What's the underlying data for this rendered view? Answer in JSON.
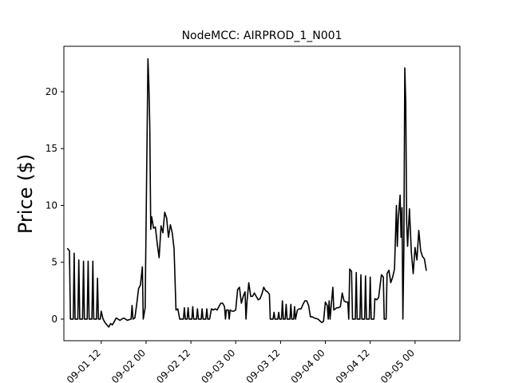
{
  "chart_data": {
    "type": "line",
    "title": "NodeMCC: AIRPROD_1_N001",
    "xlabel": "",
    "ylabel": "Price ($)",
    "x_axis": "datetime",
    "xlim": [
      "2018-09-01 02:00",
      "2018-09-05 12:00"
    ],
    "ylim": [
      -1.9,
      24.0
    ],
    "yticks": [
      0,
      5,
      10,
      15,
      20
    ],
    "xticks": [
      {
        "value": "2018-09-01 12:00",
        "label": "09-01 12"
      },
      {
        "value": "2018-09-02 00:00",
        "label": "09-02 00"
      },
      {
        "value": "2018-09-02 12:00",
        "label": "09-02 12"
      },
      {
        "value": "2018-09-03 00:00",
        "label": "09-03 00"
      },
      {
        "value": "2018-09-03 12:00",
        "label": "09-03 12"
      },
      {
        "value": "2018-09-04 00:00",
        "label": "09-04 00"
      },
      {
        "value": "2018-09-04 12:00",
        "label": "09-04 12"
      },
      {
        "value": "2018-09-05 00:00",
        "label": "09-05 00"
      }
    ],
    "grid": false,
    "line_color": "#000000",
    "series": [
      {
        "name": "",
        "points": [
          [
            "2018-09-01 03:00",
            6.2
          ],
          [
            "2018-09-01 03:30",
            6.0
          ],
          [
            "2018-09-01 03:45",
            0.0
          ],
          [
            "2018-09-01 04:30",
            0.0
          ],
          [
            "2018-09-01 04:45",
            5.8
          ],
          [
            "2018-09-01 05:00",
            0.0
          ],
          [
            "2018-09-01 05:45",
            0.0
          ],
          [
            "2018-09-01 06:00",
            5.2
          ],
          [
            "2018-09-01 06:15",
            0.0
          ],
          [
            "2018-09-01 07:00",
            0.0
          ],
          [
            "2018-09-01 07:15",
            5.1
          ],
          [
            "2018-09-01 07:30",
            0.0
          ],
          [
            "2018-09-01 08:15",
            0.0
          ],
          [
            "2018-09-01 08:30",
            5.1
          ],
          [
            "2018-09-01 08:45",
            0.0
          ],
          [
            "2018-09-01 09:30",
            0.0
          ],
          [
            "2018-09-01 09:45",
            5.1
          ],
          [
            "2018-09-01 10:00",
            0.0
          ],
          [
            "2018-09-01 10:45",
            0.0
          ],
          [
            "2018-09-01 11:00",
            3.6
          ],
          [
            "2018-09-01 11:15",
            0.0
          ],
          [
            "2018-09-01 11:45",
            0.0
          ],
          [
            "2018-09-01 12:00",
            0.7
          ],
          [
            "2018-09-01 12:30",
            0.0
          ],
          [
            "2018-09-01 13:00",
            -0.3
          ],
          [
            "2018-09-01 14:00",
            -0.7
          ],
          [
            "2018-09-01 14:30",
            -0.4
          ],
          [
            "2018-09-01 15:00",
            -0.5
          ],
          [
            "2018-09-01 15:30",
            -0.2
          ],
          [
            "2018-09-01 16:00",
            0.1
          ],
          [
            "2018-09-01 17:00",
            -0.1
          ],
          [
            "2018-09-01 18:00",
            0.1
          ],
          [
            "2018-09-01 19:00",
            -0.1
          ],
          [
            "2018-09-01 20:00",
            0.0
          ],
          [
            "2018-09-01 20:15",
            1.2
          ],
          [
            "2018-09-01 20:30",
            0.0
          ],
          [
            "2018-09-01 21:00",
            0.1
          ],
          [
            "2018-09-01 21:30",
            1.3
          ],
          [
            "2018-09-01 22:00",
            2.7
          ],
          [
            "2018-09-01 22:30",
            3.0
          ],
          [
            "2018-09-01 23:00",
            4.6
          ],
          [
            "2018-09-01 23:15",
            0.0
          ],
          [
            "2018-09-01 23:45",
            1.0
          ],
          [
            "2018-09-02 00:30",
            22.9
          ],
          [
            "2018-09-02 00:45",
            20.5
          ],
          [
            "2018-09-02 01:00",
            17.0
          ],
          [
            "2018-09-02 01:15",
            7.9
          ],
          [
            "2018-09-02 01:30",
            9.0
          ],
          [
            "2018-09-02 02:00",
            8.0
          ],
          [
            "2018-09-02 02:30",
            8.1
          ],
          [
            "2018-09-02 03:00",
            6.6
          ],
          [
            "2018-09-02 03:30",
            5.4
          ],
          [
            "2018-09-02 04:00",
            8.2
          ],
          [
            "2018-09-02 04:30",
            7.6
          ],
          [
            "2018-09-02 05:00",
            9.4
          ],
          [
            "2018-09-02 05:30",
            8.9
          ],
          [
            "2018-09-02 06:00",
            7.2
          ],
          [
            "2018-09-02 06:30",
            8.3
          ],
          [
            "2018-09-02 07:00",
            7.6
          ],
          [
            "2018-09-02 07:30",
            6.2
          ],
          [
            "2018-09-02 08:00",
            0.8
          ],
          [
            "2018-09-02 08:30",
            0.9
          ],
          [
            "2018-09-02 09:00",
            0.0
          ],
          [
            "2018-09-02 10:00",
            0.0
          ],
          [
            "2018-09-02 10:15",
            1.0
          ],
          [
            "2018-09-02 10:30",
            0.0
          ],
          [
            "2018-09-02 11:00",
            0.0
          ],
          [
            "2018-09-02 11:15",
            1.0
          ],
          [
            "2018-09-02 11:30",
            0.0
          ],
          [
            "2018-09-02 12:15",
            0.0
          ],
          [
            "2018-09-02 12:30",
            1.1
          ],
          [
            "2018-09-02 12:45",
            0.0
          ],
          [
            "2018-09-02 13:30",
            0.0
          ],
          [
            "2018-09-02 13:45",
            0.9
          ],
          [
            "2018-09-02 14:00",
            0.0
          ],
          [
            "2018-09-02 14:45",
            0.0
          ],
          [
            "2018-09-02 15:00",
            0.9
          ],
          [
            "2018-09-02 15:15",
            0.0
          ],
          [
            "2018-09-02 16:00",
            0.0
          ],
          [
            "2018-09-02 16:15",
            0.9
          ],
          [
            "2018-09-02 16:30",
            0.0
          ],
          [
            "2018-09-02 17:00",
            0.0
          ],
          [
            "2018-09-02 17:30",
            0.9
          ],
          [
            "2018-09-02 18:00",
            0.8
          ],
          [
            "2018-09-02 18:30",
            0.9
          ],
          [
            "2018-09-02 19:00",
            0.8
          ],
          [
            "2018-09-02 19:30",
            1.1
          ],
          [
            "2018-09-02 20:00",
            1.4
          ],
          [
            "2018-09-02 20:30",
            1.4
          ],
          [
            "2018-09-02 21:00",
            1.1
          ],
          [
            "2018-09-02 21:15",
            0.0
          ],
          [
            "2018-09-02 21:30",
            0.8
          ],
          [
            "2018-09-02 22:00",
            0.8
          ],
          [
            "2018-09-02 22:15",
            0.0
          ],
          [
            "2018-09-02 22:30",
            0.8
          ],
          [
            "2018-09-02 23:00",
            0.7
          ],
          [
            "2018-09-02 23:30",
            0.7
          ],
          [
            "2018-09-03 00:00",
            0.8
          ],
          [
            "2018-09-03 00:30",
            2.6
          ],
          [
            "2018-09-03 01:00",
            2.8
          ],
          [
            "2018-09-03 01:30",
            1.4
          ],
          [
            "2018-09-03 02:00",
            2.0
          ],
          [
            "2018-09-03 02:30",
            2.4
          ],
          [
            "2018-09-03 02:45",
            0.0
          ],
          [
            "2018-09-03 03:00",
            1.5
          ],
          [
            "2018-09-03 03:30",
            3.2
          ],
          [
            "2018-09-03 04:00",
            2.0
          ],
          [
            "2018-09-03 04:30",
            2.0
          ],
          [
            "2018-09-03 05:00",
            2.3
          ],
          [
            "2018-09-03 06:00",
            1.7
          ],
          [
            "2018-09-03 06:30",
            1.8
          ],
          [
            "2018-09-03 07:00",
            2.2
          ],
          [
            "2018-09-03 07:30",
            2.8
          ],
          [
            "2018-09-03 08:00",
            2.5
          ],
          [
            "2018-09-03 08:30",
            2.4
          ],
          [
            "2018-09-03 09:00",
            2.2
          ],
          [
            "2018-09-03 09:15",
            0.0
          ],
          [
            "2018-09-03 10:00",
            0.0
          ],
          [
            "2018-09-03 10:15",
            0.6
          ],
          [
            "2018-09-03 10:30",
            0.0
          ],
          [
            "2018-09-03 11:15",
            0.0
          ],
          [
            "2018-09-03 11:30",
            0.6
          ],
          [
            "2018-09-03 11:45",
            0.0
          ],
          [
            "2018-09-03 12:15",
            0.0
          ],
          [
            "2018-09-03 12:30",
            1.6
          ],
          [
            "2018-09-03 12:45",
            0.0
          ],
          [
            "2018-09-03 13:15",
            0.0
          ],
          [
            "2018-09-03 13:30",
            1.3
          ],
          [
            "2018-09-03 13:45",
            0.0
          ],
          [
            "2018-09-03 14:30",
            0.0
          ],
          [
            "2018-09-03 14:45",
            1.3
          ],
          [
            "2018-09-03 15:00",
            0.0
          ],
          [
            "2018-09-03 15:30",
            0.0
          ],
          [
            "2018-09-03 15:45",
            1.1
          ],
          [
            "2018-09-03 16:00",
            0.0
          ],
          [
            "2018-09-03 16:30",
            0.8
          ],
          [
            "2018-09-03 17:00",
            0.9
          ],
          [
            "2018-09-03 17:30",
            0.9
          ],
          [
            "2018-09-03 18:00",
            1.3
          ],
          [
            "2018-09-03 18:30",
            1.6
          ],
          [
            "2018-09-03 19:00",
            1.6
          ],
          [
            "2018-09-03 19:30",
            1.2
          ],
          [
            "2018-09-03 20:00",
            0.2
          ],
          [
            "2018-09-03 20:30",
            0.2
          ],
          [
            "2018-09-03 21:00",
            0.1
          ],
          [
            "2018-09-03 22:00",
            0.0
          ],
          [
            "2018-09-03 23:00",
            -0.3
          ],
          [
            "2018-09-03 23:30",
            -0.2
          ],
          [
            "2018-09-04 00:00",
            1.5
          ],
          [
            "2018-09-04 00:30",
            1.2
          ],
          [
            "2018-09-04 00:45",
            0.0
          ],
          [
            "2018-09-04 01:00",
            1.6
          ],
          [
            "2018-09-04 01:15",
            0.0
          ],
          [
            "2018-09-04 01:30",
            1.0
          ],
          [
            "2018-09-04 02:00",
            2.8
          ],
          [
            "2018-09-04 02:15",
            0.8
          ],
          [
            "2018-09-04 03:00",
            1.0
          ],
          [
            "2018-09-04 03:30",
            1.0
          ],
          [
            "2018-09-04 04:00",
            1.1
          ],
          [
            "2018-09-04 04:30",
            2.3
          ],
          [
            "2018-09-04 05:00",
            1.6
          ],
          [
            "2018-09-04 05:30",
            1.5
          ],
          [
            "2018-09-04 06:00",
            1.5
          ],
          [
            "2018-09-04 06:15",
            0.0
          ],
          [
            "2018-09-04 06:30",
            4.4
          ],
          [
            "2018-09-04 07:00",
            4.2
          ],
          [
            "2018-09-04 07:15",
            0.0
          ],
          [
            "2018-09-04 08:00",
            0.0
          ],
          [
            "2018-09-04 08:15",
            4.1
          ],
          [
            "2018-09-04 08:30",
            0.0
          ],
          [
            "2018-09-04 09:15",
            0.0
          ],
          [
            "2018-09-04 09:30",
            3.9
          ],
          [
            "2018-09-04 09:45",
            0.0
          ],
          [
            "2018-09-04 10:30",
            0.0
          ],
          [
            "2018-09-04 10:45",
            3.8
          ],
          [
            "2018-09-04 11:00",
            0.0
          ],
          [
            "2018-09-04 11:45",
            0.0
          ],
          [
            "2018-09-04 12:00",
            3.7
          ],
          [
            "2018-09-04 12:15",
            0.0
          ],
          [
            "2018-09-04 13:00",
            0.0
          ],
          [
            "2018-09-04 13:15",
            1.8
          ],
          [
            "2018-09-04 13:45",
            1.7
          ],
          [
            "2018-09-04 14:15",
            1.9
          ],
          [
            "2018-09-04 15:00",
            3.9
          ],
          [
            "2018-09-04 15:30",
            3.7
          ],
          [
            "2018-09-04 15:45",
            0.0
          ],
          [
            "2018-09-04 16:15",
            0.0
          ],
          [
            "2018-09-04 16:30",
            4.0
          ],
          [
            "2018-09-04 17:00",
            4.3
          ],
          [
            "2018-09-04 17:30",
            3.2
          ],
          [
            "2018-09-04 18:00",
            3.7
          ],
          [
            "2018-09-04 18:30",
            4.4
          ],
          [
            "2018-09-04 19:00",
            10.0
          ],
          [
            "2018-09-04 19:15",
            6.4
          ],
          [
            "2018-09-04 19:30",
            8.8
          ],
          [
            "2018-09-04 20:00",
            10.9
          ],
          [
            "2018-09-04 20:15",
            7.2
          ],
          [
            "2018-09-04 20:30",
            9.8
          ],
          [
            "2018-09-04 20:45",
            0.0
          ],
          [
            "2018-09-04 21:00",
            6.0
          ],
          [
            "2018-09-04 21:15",
            22.1
          ],
          [
            "2018-09-04 21:30",
            19.0
          ],
          [
            "2018-09-04 21:45",
            8.6
          ],
          [
            "2018-09-04 22:00",
            6.4
          ],
          [
            "2018-09-04 22:30",
            9.7
          ],
          [
            "2018-09-04 23:00",
            5.9
          ],
          [
            "2018-09-04 23:30",
            4.0
          ],
          [
            "2018-09-05 00:00",
            6.3
          ],
          [
            "2018-09-05 00:30",
            5.2
          ],
          [
            "2018-09-05 01:00",
            7.8
          ],
          [
            "2018-09-05 01:30",
            6.0
          ],
          [
            "2018-09-05 02:00",
            5.5
          ],
          [
            "2018-09-05 02:30",
            5.3
          ],
          [
            "2018-09-05 03:00",
            4.3
          ]
        ]
      }
    ]
  }
}
